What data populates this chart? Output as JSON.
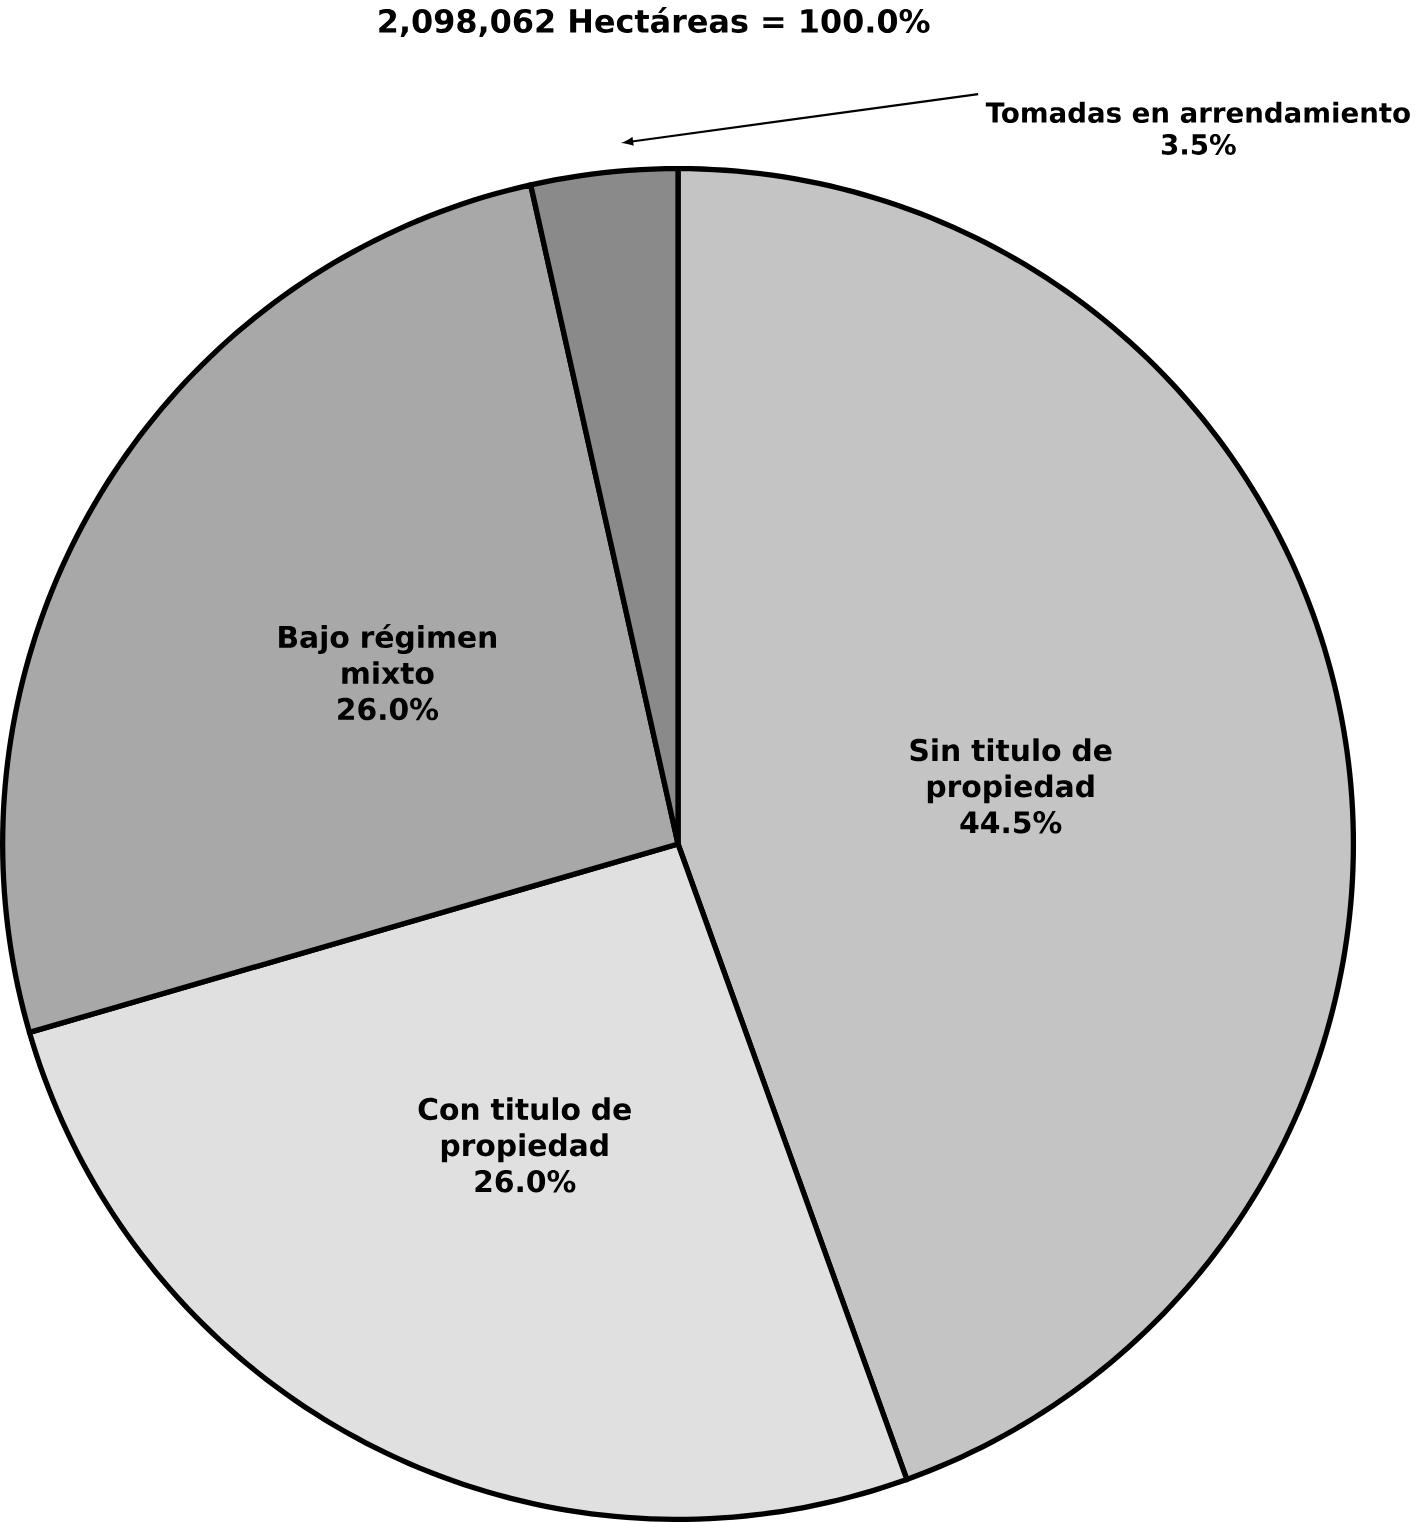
{
  "chart_data": {
    "type": "pie",
    "title": "2,098,062 Hectáreas = 100.0%",
    "categories": [
      "Sin titulo de propiedad",
      "Con titulo de propiedad",
      "Bajo régimen mixto",
      "Tomadas en arrendamiento"
    ],
    "values": [
      44.5,
      26.0,
      26.0,
      3.5
    ],
    "value_labels": [
      "44.5%",
      "26.0%",
      "26.0%",
      "3.5%"
    ],
    "colors": [
      "#c4c4c4",
      "#e0e0e0",
      "#a8a8a8",
      "#8a8a8a"
    ]
  }
}
